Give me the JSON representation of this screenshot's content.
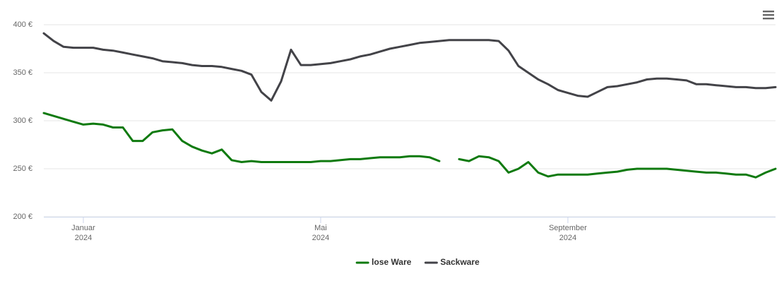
{
  "chart_data": {
    "type": "line",
    "categories": [
      null,
      null,
      null,
      null,
      "Januar 2024",
      null,
      null,
      null,
      null,
      null,
      null,
      null,
      null,
      null,
      null,
      null,
      null,
      null,
      null,
      null,
      null,
      null,
      null,
      null,
      null,
      null,
      null,
      null,
      "Mai 2024",
      null,
      null,
      null,
      null,
      null,
      null,
      null,
      null,
      null,
      null,
      null,
      null,
      null,
      null,
      null,
      null,
      null,
      null,
      null,
      null,
      null,
      null,
      null,
      null,
      "September 2024",
      null,
      null,
      null,
      null,
      null,
      null,
      null,
      null,
      null,
      null,
      null,
      null,
      null,
      null,
      null,
      null,
      null,
      null,
      null,
      null,
      null
    ],
    "series": [
      {
        "name": "lose Ware",
        "color": "#0f7a0f",
        "values": [
          308,
          305,
          302,
          299,
          296,
          297,
          296,
          293,
          293,
          279,
          279,
          288,
          290,
          291,
          279,
          273,
          269,
          266,
          270,
          259,
          257,
          258,
          257,
          257,
          257,
          257,
          257,
          257,
          258,
          258,
          259,
          260,
          260,
          261,
          262,
          262,
          262,
          263,
          263,
          262,
          258,
          null,
          260,
          258,
          263,
          262,
          258,
          246,
          250,
          257,
          246,
          242,
          244,
          244,
          244,
          244,
          245,
          246,
          247,
          249,
          250,
          250,
          250,
          250,
          249,
          248,
          247,
          246,
          246,
          245,
          244,
          244,
          241,
          246,
          250
        ]
      },
      {
        "name": "Sackware",
        "color": "#434348",
        "values": [
          391,
          383,
          377,
          376,
          376,
          376,
          374,
          373,
          371,
          369,
          367,
          365,
          362,
          361,
          360,
          358,
          357,
          357,
          356,
          354,
          352,
          348,
          330,
          321,
          341,
          374,
          358,
          358,
          359,
          360,
          362,
          364,
          367,
          369,
          372,
          375,
          377,
          379,
          381,
          382,
          383,
          384,
          384,
          384,
          384,
          384,
          383,
          373,
          357,
          350,
          343,
          338,
          332,
          329,
          326,
          325,
          330,
          335,
          336,
          338,
          340,
          343,
          344,
          344,
          343,
          342,
          338,
          338,
          337,
          336,
          335,
          335,
          334,
          334,
          335
        ]
      }
    ],
    "ylim": [
      200,
      400
    ],
    "yticks": [
      {
        "value": 200,
        "label": "200 €"
      },
      {
        "value": 250,
        "label": "250 €"
      },
      {
        "value": 300,
        "label": "300 €"
      },
      {
        "value": 350,
        "label": "350 €"
      },
      {
        "value": 400,
        "label": "400 €"
      }
    ],
    "grid": true,
    "legend": "bottom"
  }
}
